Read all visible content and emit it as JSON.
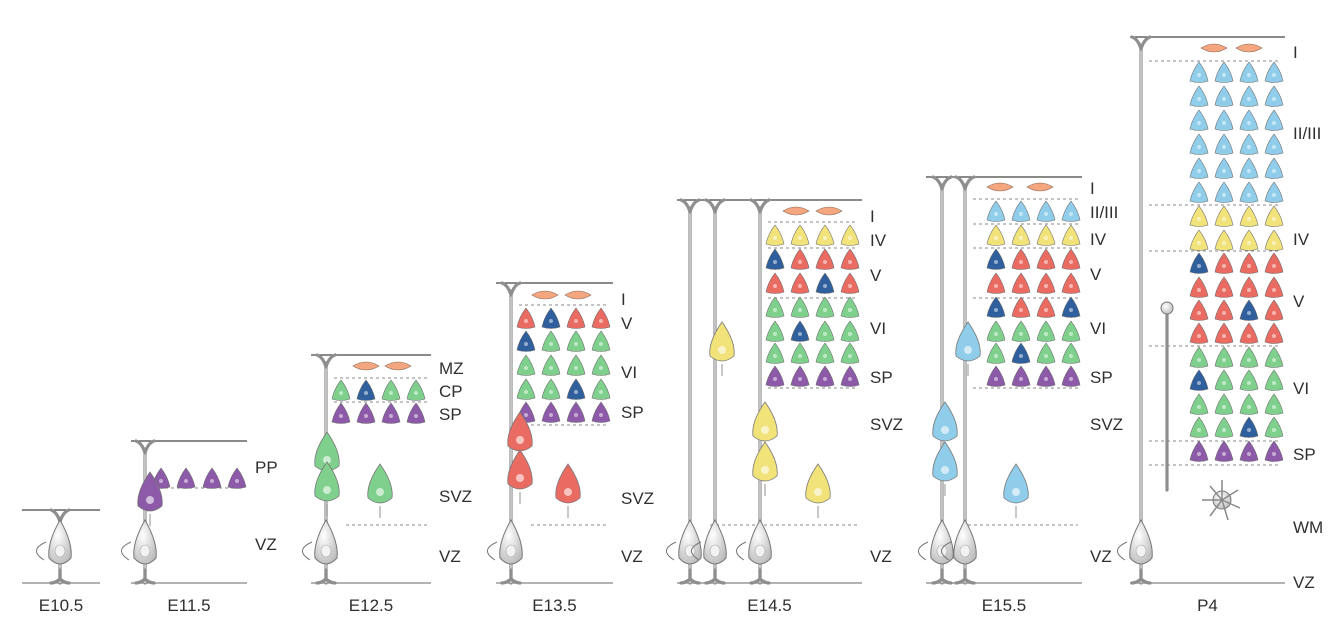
{
  "colors": {
    "I": "#f4a67e",
    "II/III": "#8fcdea",
    "IV": "#f1e27a",
    "V_red": "#ea6b62",
    "V_blue": "#2f5f9c",
    "VI": "#7ed08c",
    "SP": "#8c5aa8",
    "progenitor": "#d6d6d6",
    "fiber": "#8e8e8e"
  },
  "icons": [
    "radial-glia-icon",
    "neuron-icon",
    "cajal-retzius-icon",
    "intermediate-progenitor-icon",
    "astrocyte-icon",
    "self-renewal-arrow-icon"
  ],
  "panels": [
    {
      "stage": "E10.5",
      "layers": []
    },
    {
      "stage": "E11.5",
      "layers": [
        "PP",
        "VZ"
      ]
    },
    {
      "stage": "E12.5",
      "layers": [
        "MZ",
        "CP",
        "SP",
        "SVZ",
        "VZ"
      ]
    },
    {
      "stage": "E13.5",
      "layers": [
        "I",
        "V",
        "VI",
        "SP",
        "SVZ",
        "VZ"
      ]
    },
    {
      "stage": "E14.5",
      "layers": [
        "I",
        "IV",
        "V",
        "VI",
        "SP",
        "SVZ",
        "VZ"
      ]
    },
    {
      "stage": "E15.5",
      "layers": [
        "I",
        "II/III",
        "IV",
        "V",
        "VI",
        "SP",
        "SVZ",
        "VZ"
      ]
    },
    {
      "stage": "P4",
      "layers": [
        "I",
        "II/III",
        "IV",
        "V",
        "VI",
        "SP",
        "WM",
        "VZ"
      ]
    }
  ]
}
